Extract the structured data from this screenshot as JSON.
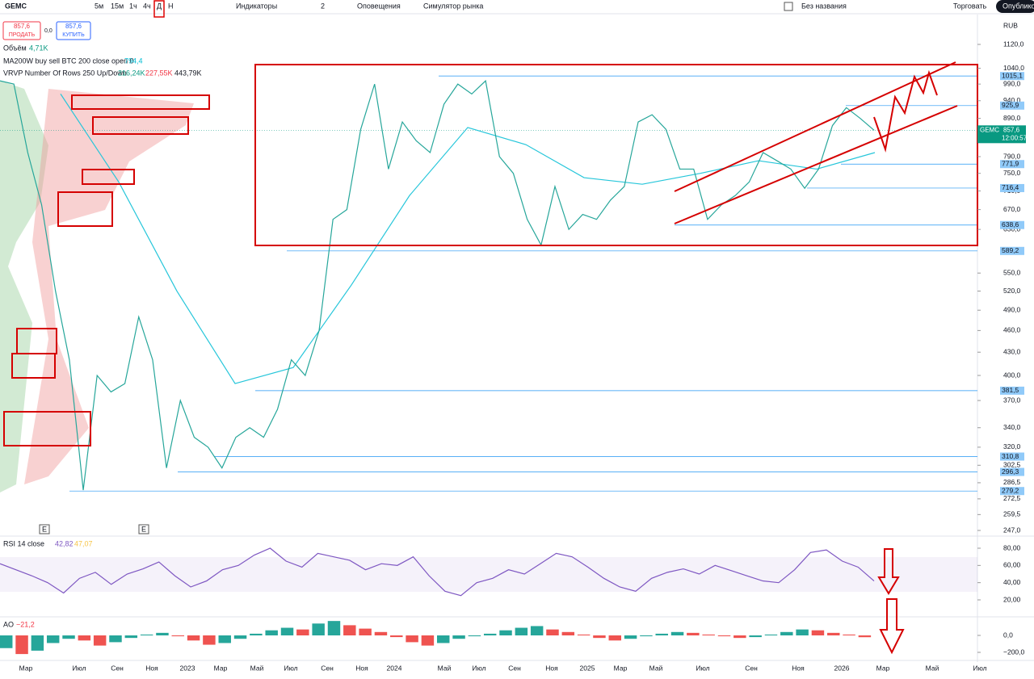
{
  "toolbar": {
    "symbol": "GEMC",
    "intervals": [
      "5м",
      "15м",
      "1ч",
      "4ч",
      "Д",
      "Н"
    ],
    "indicators": "Индикаторы",
    "layouts": "2",
    "alerts": "Оповещения",
    "replay": "Симулятор рынка",
    "layout_name": "Без названия",
    "trade": "Торговать",
    "publish": "Опубликов"
  },
  "order": {
    "sell_price": "857,6",
    "sell": "ПРОДАТЬ",
    "spread": "0,0",
    "buy_price": "857,6",
    "buy": "КУПИТЬ"
  },
  "legend": {
    "volume": {
      "name": "Объём",
      "value": "4,71K"
    },
    "ma": {
      "name": "MA200W buy sell BTC 200 close open 0",
      "value": "794,4"
    },
    "vrvp": {
      "name": "VRVP Number Of Rows 250 Up/Down",
      "up": "216,24K",
      "down": "227,55K",
      "total": "443,79K"
    }
  },
  "currency": "RUB",
  "price_axis": {
    "ylim": [
      247,
      1120
    ],
    "ticks": [
      {
        "value": 1120,
        "label": "1120,0"
      },
      {
        "value": 1040,
        "label": "1040,0"
      },
      {
        "value": 990,
        "label": "990,0"
      },
      {
        "value": 940,
        "label": "940,0"
      },
      {
        "value": 890,
        "label": "890,0"
      },
      {
        "value": 790,
        "label": "790,0"
      },
      {
        "value": 750,
        "label": "750,0"
      },
      {
        "value": 710,
        "label": "710,0"
      },
      {
        "value": 670,
        "label": "670,0"
      },
      {
        "value": 630,
        "label": "630,0"
      },
      {
        "value": 550,
        "label": "550,0"
      },
      {
        "value": 520,
        "label": "520,0"
      },
      {
        "value": 490,
        "label": "490,0"
      },
      {
        "value": 460,
        "label": "460,0"
      },
      {
        "value": 430,
        "label": "430,0"
      },
      {
        "value": 400,
        "label": "400,0"
      },
      {
        "value": 370,
        "label": "370,0"
      },
      {
        "value": 340,
        "label": "340,0"
      },
      {
        "value": 320,
        "label": "320,0"
      },
      {
        "value": 302.5,
        "label": "302,5"
      },
      {
        "value": 286.5,
        "label": "286,5"
      },
      {
        "value": 272.5,
        "label": "272,5"
      },
      {
        "value": 259.5,
        "label": "259,5"
      },
      {
        "value": 247,
        "label": "247,0"
      }
    ]
  },
  "levels": [
    {
      "value": 1015.1,
      "label": "1015,1"
    },
    {
      "value": 925.9,
      "label": "925,9"
    },
    {
      "value": 771.9,
      "label": "771,9"
    },
    {
      "value": 716.4,
      "label": "716,4"
    },
    {
      "value": 638.6,
      "label": "638,6"
    },
    {
      "value": 589.2,
      "label": "589,2"
    },
    {
      "value": 381.5,
      "label": "381,5"
    },
    {
      "value": 310.8,
      "label": "310,8"
    },
    {
      "value": 296.3,
      "label": "296,3"
    },
    {
      "value": 279.2,
      "label": "279,2"
    }
  ],
  "current": {
    "symbol": "GEMC",
    "value": 857.6,
    "label": "857,6",
    "timer": "12:00:57"
  },
  "price": [
    1000,
    990,
    800,
    680,
    520,
    420,
    280,
    400,
    380,
    390,
    480,
    420,
    300,
    370,
    330,
    320,
    300,
    330,
    340,
    330,
    360,
    420,
    400,
    460,
    650,
    670,
    860,
    990,
    760,
    880,
    830,
    800,
    930,
    990,
    960,
    1000,
    790,
    750,
    650,
    600,
    720,
    630,
    660,
    650,
    690,
    720,
    880,
    900,
    860,
    760,
    760,
    650,
    680,
    700,
    730,
    800,
    780,
    760,
    716,
    760,
    870,
    920,
    890,
    857.6
  ],
  "ma": [
    960,
    730,
    520,
    390,
    410,
    530,
    700,
    865,
    820,
    740,
    725,
    750,
    780,
    760,
    800
  ],
  "earnings": [
    "E",
    "E"
  ],
  "rsi": {
    "title": "RSI 14 close",
    "value": "42,82",
    "signal": "47,07",
    "ticks": [
      {
        "value": 80,
        "label": "80,00"
      },
      {
        "value": 60,
        "label": "60,00"
      },
      {
        "value": 40,
        "label": "40,00"
      },
      {
        "value": 20,
        "label": "20,00"
      }
    ],
    "values": [
      62,
      55,
      48,
      40,
      28,
      45,
      52,
      38,
      50,
      56,
      64,
      48,
      35,
      42,
      55,
      60,
      72,
      80,
      65,
      58,
      74,
      70,
      66,
      55,
      62,
      60,
      70,
      48,
      30,
      25,
      40,
      45,
      55,
      50,
      62,
      74,
      70,
      58,
      45,
      35,
      30,
      45,
      52,
      56,
      50,
      60,
      54,
      48,
      42,
      40,
      55,
      75,
      78,
      65,
      58,
      42
    ]
  },
  "ao": {
    "title": "AO",
    "value": "−21,2",
    "ticks": [
      {
        "value": 0,
        "label": "0,0"
      },
      {
        "value": -200,
        "label": "−200,0"
      }
    ],
    "values": [
      -150,
      -220,
      -180,
      -90,
      -40,
      -60,
      -120,
      -80,
      -30,
      10,
      30,
      -10,
      -60,
      -110,
      -90,
      -40,
      20,
      60,
      90,
      70,
      140,
      170,
      120,
      80,
      40,
      -20,
      -80,
      -120,
      -90,
      -40,
      -10,
      20,
      60,
      90,
      110,
      70,
      40,
      10,
      -30,
      -60,
      -40,
      -10,
      20,
      40,
      30,
      10,
      -10,
      -30,
      -20,
      10,
      40,
      70,
      60,
      30,
      10,
      -21.2
    ]
  },
  "time_axis": [
    "Мар",
    "Июл",
    "Сен",
    "Ноя",
    "2023",
    "Мар",
    "Май",
    "Июл",
    "Сен",
    "Ноя",
    "2024",
    "Май",
    "Июл",
    "Сен",
    "Ноя",
    "2025",
    "Мар",
    "Май",
    "Июл",
    "Сен",
    "Ноя",
    "2026",
    "Мар",
    "Май",
    "Июл"
  ]
}
